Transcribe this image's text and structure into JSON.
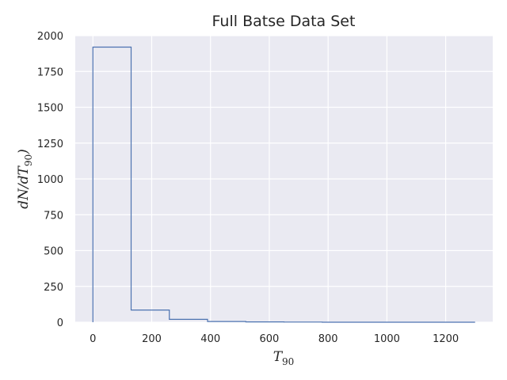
{
  "chart_data": {
    "type": "bar",
    "histtype": "step",
    "title": "Full Batse Data Set",
    "xlabel": {
      "main": "T",
      "sub": "90"
    },
    "ylabel": {
      "prefix": "dN/dT",
      "sub": "90",
      "suffix": ")"
    },
    "bin_edges": [
      0,
      130,
      260,
      390,
      520,
      650,
      780,
      910,
      1040,
      1170,
      1300
    ],
    "values": [
      1920,
      85,
      20,
      5,
      2,
      1,
      0,
      0,
      0,
      0
    ],
    "xlim": [
      -60,
      1360
    ],
    "ylim": [
      0,
      2000
    ],
    "xticks": [
      0,
      200,
      400,
      600,
      800,
      1000,
      1200
    ],
    "xtick_labels": [
      "0",
      "200",
      "400",
      "600",
      "800",
      "1000",
      "1200"
    ],
    "yticks": [
      0,
      250,
      500,
      750,
      1000,
      1250,
      1500,
      1750,
      2000
    ],
    "ytick_labels": [
      "0",
      "250",
      "500",
      "750",
      "1000",
      "1250",
      "1500",
      "1750",
      "2000"
    ],
    "grid": true,
    "colors": {
      "background": "#eaeaf2",
      "grid": "#ffffff",
      "line": "#4c72b0",
      "text": "#262626"
    }
  }
}
